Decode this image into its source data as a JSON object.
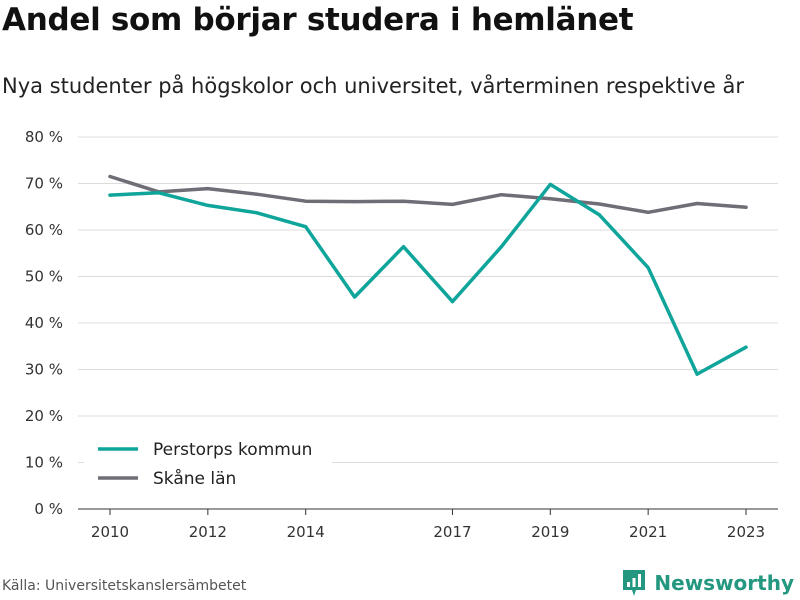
{
  "title": "Andel som börjar studera i hemlänet",
  "subtitle": "Nya studenter på högskolor och universitet, vårterminen respektive år",
  "source": "Källa: Universitetskanslersämbetet",
  "brand": {
    "name": "Newsworthy",
    "icon": "bar-chart-logo-icon",
    "color": "#23977f"
  },
  "chart_data": {
    "type": "line",
    "x": [
      2010,
      2011,
      2012,
      2013,
      2014,
      2015,
      2016,
      2017,
      2018,
      2019,
      2020,
      2021,
      2022,
      2023
    ],
    "x_ticks": [
      2010,
      2012,
      2014,
      2017,
      2019,
      2021,
      2023
    ],
    "x_tick_labels": [
      "2010",
      "2012",
      "2014",
      "2017",
      "2019",
      "2021",
      "2023"
    ],
    "y_ticks": [
      0,
      10,
      20,
      30,
      40,
      50,
      60,
      70,
      80
    ],
    "y_tick_labels": [
      "0 %",
      "10 %",
      "20 %",
      "30 %",
      "40 %",
      "50 %",
      "60 %",
      "70 %",
      "80 %"
    ],
    "ylim": [
      0,
      80
    ],
    "grid": true,
    "legend_position": "bottom-left",
    "series": [
      {
        "name": "Perstorps kommun",
        "color": "#0fa59a",
        "values": [
          67.5,
          68.0,
          65.3,
          63.7,
          60.7,
          45.6,
          56.4,
          44.6,
          56.4,
          69.8,
          63.3,
          51.9,
          29.0,
          34.8
        ]
      },
      {
        "name": "Skåne län",
        "color": "#6f6d76",
        "values": [
          71.5,
          68.2,
          68.9,
          67.7,
          66.2,
          66.1,
          66.2,
          65.5,
          67.6,
          66.7,
          65.6,
          63.8,
          65.7,
          64.9
        ]
      }
    ]
  }
}
